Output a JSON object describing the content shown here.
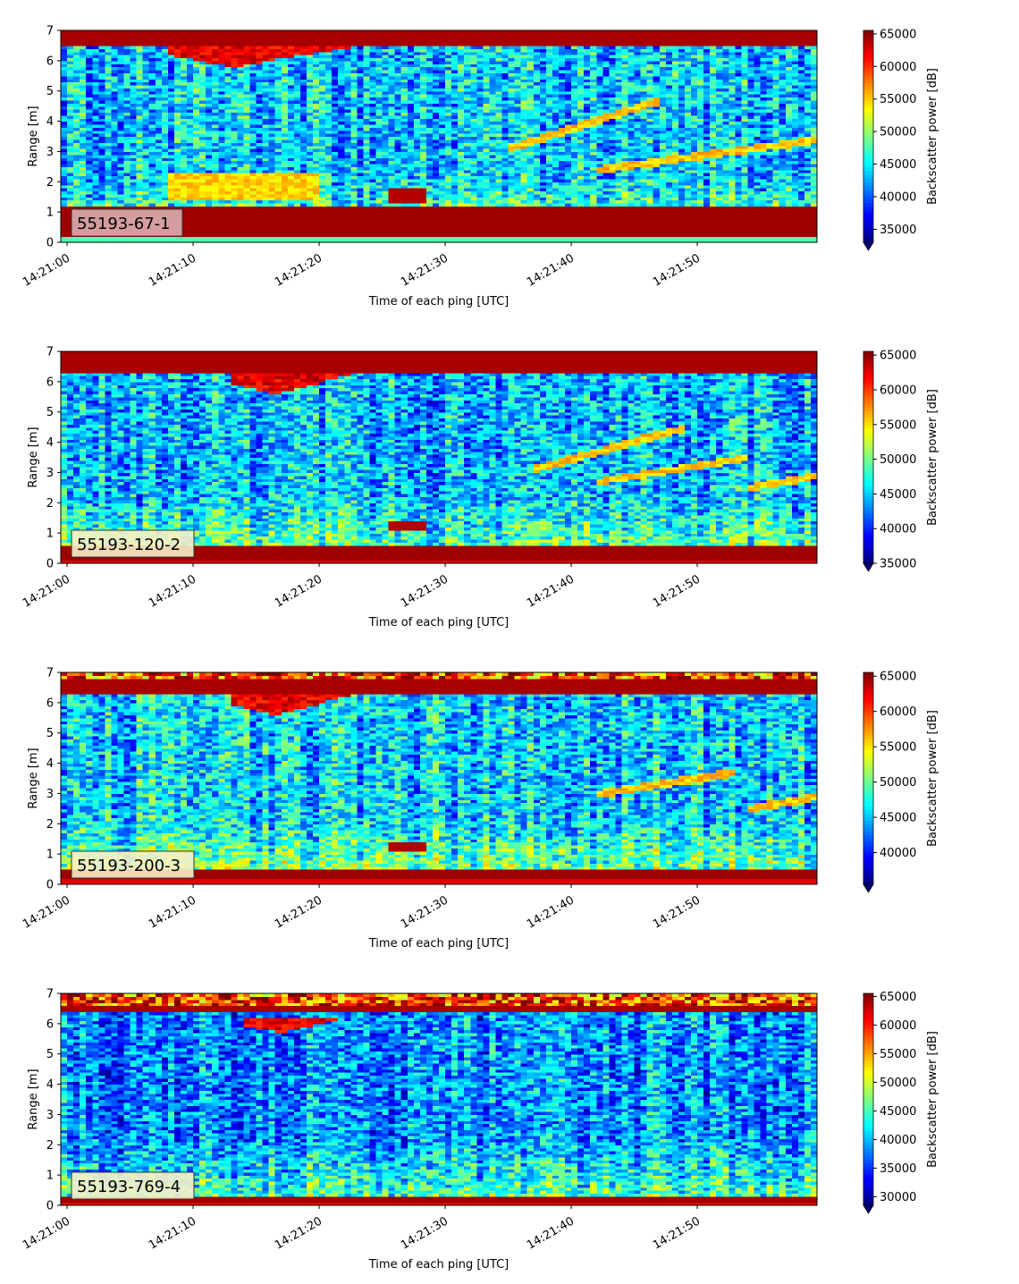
{
  "chart_data": [
    {
      "type": "heatmap",
      "label": "55193-67-1",
      "xlabel": "Time of each ping [UTC]",
      "ylabel": "Range [m]",
      "xticks": [
        "14:21:00",
        "14:21:10",
        "14:21:20",
        "14:21:30",
        "14:21:40",
        "14:21:50"
      ],
      "xlim_seconds": [
        -0.5,
        59.5
      ],
      "ylim": [
        0,
        7
      ],
      "yticks": [
        0,
        1,
        2,
        3,
        4,
        5,
        6,
        7
      ],
      "colorbar_label": "Backscatter power [dB]",
      "clim": [
        33000,
        65535
      ],
      "colorbar_ticks": [
        35000,
        40000,
        45000,
        50000,
        55000,
        60000,
        65000
      ],
      "colorbar_extend": "min",
      "colormap": "jet",
      "features": {
        "bottom_band": [
          0.2,
          1.2
        ],
        "surface_band": [
          6.5,
          7.0
        ],
        "surface_ripple": {
          "t_start": 8,
          "t_end": 23,
          "range_low": 5.8,
          "range_high": 6.5
        },
        "blob": {
          "t_start": 25.5,
          "t_end": 28.5,
          "range_low": 1.3,
          "range_high": 1.8
        },
        "diagonal_lines": [
          {
            "t_start": 35,
            "t_end": 47,
            "r_start": 3.1,
            "r_end": 4.7
          },
          {
            "t_start": 42,
            "t_end": 59.5,
            "r_start": 2.4,
            "r_end": 3.4
          }
        ]
      }
    },
    {
      "type": "heatmap",
      "label": "55193-120-2",
      "xlabel": "Time of each ping [UTC]",
      "ylabel": "Range [m]",
      "xticks": [
        "14:21:00",
        "14:21:10",
        "14:21:20",
        "14:21:30",
        "14:21:40",
        "14:21:50"
      ],
      "xlim_seconds": [
        -0.5,
        59.5
      ],
      "ylim": [
        0,
        7
      ],
      "yticks": [
        0,
        1,
        2,
        3,
        4,
        5,
        6,
        7
      ],
      "colorbar_label": "Backscatter power [dB]",
      "clim": [
        35000,
        65535
      ],
      "colorbar_ticks": [
        35000,
        40000,
        45000,
        50000,
        55000,
        60000,
        65000
      ],
      "colorbar_extend": "min",
      "colormap": "jet",
      "features": {
        "bottom_band": [
          0.1,
          0.55
        ],
        "surface_band": [
          6.3,
          7.0
        ],
        "surface_ripple": {
          "t_start": 13,
          "t_end": 23,
          "range_low": 5.6,
          "range_high": 6.3
        },
        "blob": {
          "t_start": 25.5,
          "t_end": 28.5,
          "range_low": 1.1,
          "range_high": 1.4
        },
        "diagonal_lines": [
          {
            "t_start": 37,
            "t_end": 49,
            "r_start": 3.1,
            "r_end": 4.5
          },
          {
            "t_start": 42,
            "t_end": 54,
            "r_start": 2.7,
            "r_end": 3.5
          },
          {
            "t_start": 54,
            "t_end": 59.5,
            "r_start": 2.5,
            "r_end": 2.9
          }
        ]
      }
    },
    {
      "type": "heatmap",
      "label": "55193-200-3",
      "xlabel": "Time of each ping [UTC]",
      "ylabel": "Range [m]",
      "xticks": [
        "14:21:00",
        "14:21:10",
        "14:21:20",
        "14:21:30",
        "14:21:40",
        "14:21:50"
      ],
      "xlim_seconds": [
        -0.5,
        59.5
      ],
      "ylim": [
        0,
        7
      ],
      "yticks": [
        0,
        1,
        2,
        3,
        4,
        5,
        6,
        7
      ],
      "colorbar_label": "Backscatter power [dB]",
      "clim": [
        35500,
        65535
      ],
      "colorbar_ticks": [
        40000,
        45000,
        50000,
        55000,
        60000,
        65000
      ],
      "colorbar_extend": "min",
      "colormap": "jet",
      "features": {
        "bottom_band": [
          0.2,
          0.5
        ],
        "surface_band": [
          6.3,
          6.8
        ],
        "surface_ripple": {
          "t_start": 13,
          "t_end": 23,
          "range_low": 5.6,
          "range_high": 6.3
        },
        "blob": {
          "t_start": 25.5,
          "t_end": 28.5,
          "range_low": 1.1,
          "range_high": 1.4
        },
        "diagonal_lines": [
          {
            "t_start": 42,
            "t_end": 53,
            "r_start": 3.0,
            "r_end": 3.7
          },
          {
            "t_start": 54,
            "t_end": 59.5,
            "r_start": 2.5,
            "r_end": 2.9
          }
        ]
      }
    },
    {
      "type": "heatmap",
      "label": "55193-769-4",
      "xlabel": "Time of each ping [UTC]",
      "ylabel": "Range [m]",
      "xticks": [
        "14:21:00",
        "14:21:10",
        "14:21:20",
        "14:21:30",
        "14:21:40",
        "14:21:50"
      ],
      "xlim_seconds": [
        -0.5,
        59.5
      ],
      "ylim": [
        0,
        7
      ],
      "yticks": [
        0,
        1,
        2,
        3,
        4,
        5,
        6,
        7
      ],
      "colorbar_label": "Backscatter power [dB]",
      "clim": [
        28500,
        65535
      ],
      "colorbar_ticks": [
        30000,
        35000,
        40000,
        45000,
        50000,
        55000,
        60000,
        65000
      ],
      "colorbar_extend": "min",
      "colormap": "jet",
      "features": {
        "bottom_band": [
          0.15,
          0.3
        ],
        "surface_band": [
          6.4,
          6.6
        ],
        "surface_ripple": {
          "t_start": 14,
          "t_end": 22,
          "range_low": 5.7,
          "range_high": 6.2
        },
        "blob": null,
        "diagonal_lines": []
      }
    }
  ],
  "colors": {
    "label_box_1": "#d9aeb0",
    "label_box_other": "#f6f0c8"
  }
}
